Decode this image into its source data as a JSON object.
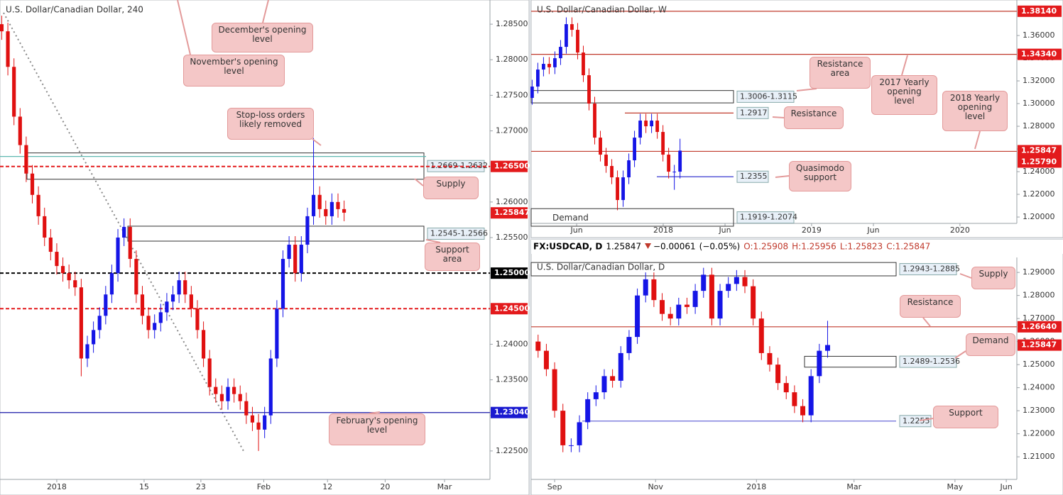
{
  "chart_data": [
    {
      "type": "candlestick",
      "title": "U.S. Dollar/Canadian Dollar, 240",
      "up_color": "#1515e6",
      "down_color": "#e01010",
      "xlim": [
        -6.5,
        49.6
      ],
      "ylim": [
        1.221,
        1.2884
      ],
      "xticks": [
        {
          "value": 0,
          "label": "2018"
        },
        {
          "value": 10,
          "label": "15"
        },
        {
          "value": 16.5,
          "label": "23"
        },
        {
          "value": 23.7,
          "label": "Feb"
        },
        {
          "value": 31,
          "label": "12"
        },
        {
          "value": 37.6,
          "label": "20"
        },
        {
          "value": 44.4,
          "label": "Mar"
        }
      ],
      "yticks": [
        {
          "value": 1.225,
          "label": "1.22500"
        },
        {
          "value": 1.23,
          "label": "1.23000"
        },
        {
          "value": 1.235,
          "label": "1.23500"
        },
        {
          "value": 1.24,
          "label": "1.24000"
        },
        {
          "value": 1.245,
          "label": "1.24500"
        },
        {
          "value": 1.25,
          "label": "1.25000"
        },
        {
          "value": 1.255,
          "label": "1.25500"
        },
        {
          "value": 1.26,
          "label": "1.26000"
        },
        {
          "value": 1.265,
          "label": "1.26500"
        },
        {
          "value": 1.27,
          "label": "1.27000"
        },
        {
          "value": 1.275,
          "label": "1.27500"
        },
        {
          "value": 1.28,
          "label": "1.28000"
        },
        {
          "value": 1.285,
          "label": "1.28500"
        }
      ],
      "x": [
        -6.3,
        -5.6,
        -4.9,
        -4.2,
        -3.5,
        -2.8,
        -2.1,
        -1.4,
        -0.7,
        0,
        0.7,
        1.4,
        2.1,
        2.8,
        3.5,
        4.2,
        4.9,
        5.6,
        6.3,
        7,
        7.7,
        8.4,
        9.1,
        9.8,
        10.5,
        11.2,
        11.9,
        12.6,
        13.3,
        14,
        14.7,
        15.4,
        16.1,
        16.8,
        17.5,
        18.2,
        18.9,
        19.6,
        20.3,
        21,
        21.7,
        22.4,
        23.1,
        23.8,
        24.5,
        25.2,
        25.9,
        26.6,
        27.3,
        28,
        28.7,
        29.4,
        30.1,
        30.8,
        31.5,
        32.2,
        32.9
      ],
      "open": [
        1.285,
        1.284,
        1.279,
        1.272,
        1.268,
        1.264,
        1.261,
        1.258,
        1.255,
        1.253,
        1.251,
        1.25,
        1.249,
        1.248,
        1.238,
        1.24,
        1.242,
        1.244,
        1.247,
        1.25,
        1.255,
        1.2565,
        1.252,
        1.247,
        1.244,
        1.242,
        1.243,
        1.2445,
        1.246,
        1.247,
        1.249,
        1.247,
        1.245,
        1.242,
        1.238,
        1.234,
        1.233,
        1.232,
        1.234,
        1.233,
        1.232,
        1.23,
        1.229,
        1.228,
        1.23,
        1.238,
        1.245,
        1.252,
        1.254,
        1.25,
        1.254,
        1.258,
        1.261,
        1.259,
        1.258,
        1.26,
        1.259
      ],
      "high": [
        1.2862,
        1.2852,
        1.2802,
        1.2732,
        1.2692,
        1.2652,
        1.2622,
        1.2592,
        1.2562,
        1.2542,
        1.2522,
        1.2512,
        1.2502,
        1.2492,
        1.2412,
        1.2432,
        1.2452,
        1.2482,
        1.2512,
        1.2562,
        1.2577,
        1.2577,
        1.2532,
        1.2482,
        1.2452,
        1.2442,
        1.2457,
        1.2472,
        1.2482,
        1.2502,
        1.2502,
        1.2482,
        1.2462,
        1.2432,
        1.2392,
        1.2352,
        1.2342,
        1.2352,
        1.2352,
        1.2342,
        1.2332,
        1.2312,
        1.2302,
        1.2312,
        1.2392,
        1.2462,
        1.2532,
        1.2552,
        1.2552,
        1.2552,
        1.2592,
        1.269,
        1.2622,
        1.2602,
        1.2612,
        1.2612,
        1.2602
      ],
      "low": [
        1.2828,
        1.2778,
        1.2708,
        1.2668,
        1.2628,
        1.2598,
        1.2568,
        1.2538,
        1.2518,
        1.2498,
        1.2488,
        1.2478,
        1.2468,
        1.2355,
        1.2368,
        1.2388,
        1.2408,
        1.2428,
        1.2458,
        1.2488,
        1.2538,
        1.2508,
        1.2458,
        1.2428,
        1.2408,
        1.2408,
        1.2418,
        1.2433,
        1.2448,
        1.2458,
        1.2458,
        1.2438,
        1.2408,
        1.2368,
        1.2328,
        1.2318,
        1.2308,
        1.2308,
        1.2318,
        1.2308,
        1.2288,
        1.2278,
        1.225,
        1.2268,
        1.2288,
        1.2368,
        1.2438,
        1.2508,
        1.2488,
        1.2488,
        1.2528,
        1.2568,
        1.2578,
        1.2568,
        1.2568,
        1.2578,
        1.2573
      ],
      "close": [
        1.284,
        1.279,
        1.272,
        1.268,
        1.264,
        1.261,
        1.258,
        1.255,
        1.253,
        1.251,
        1.25,
        1.249,
        1.248,
        1.238,
        1.24,
        1.242,
        1.244,
        1.247,
        1.25,
        1.255,
        1.2565,
        1.252,
        1.247,
        1.244,
        1.242,
        1.243,
        1.2445,
        1.246,
        1.247,
        1.249,
        1.247,
        1.245,
        1.242,
        1.238,
        1.234,
        1.233,
        1.232,
        1.234,
        1.233,
        1.232,
        1.23,
        1.229,
        1.228,
        1.23,
        1.238,
        1.245,
        1.252,
        1.254,
        1.25,
        1.254,
        1.258,
        1.261,
        1.259,
        1.258,
        1.26,
        1.259,
        1.2585
      ],
      "levels": [
        {
          "value": 1.2664,
          "color": "#5fb8b0"
        },
        {
          "value": 1.265,
          "color": "#e31a1c",
          "dashed": true
        },
        {
          "value": 1.25,
          "color": "#000000",
          "dashed": true
        },
        {
          "value": 1.245,
          "color": "#e31a1c",
          "dashed": true
        },
        {
          "value": 1.2304,
          "color": "#1a1aa8"
        }
      ],
      "zones": [
        {
          "label": "1.2669-1.2632",
          "high": 1.2669,
          "low": 1.2632
        },
        {
          "label": "1.2545-1.2566",
          "low": 1.2545,
          "high": 1.2566
        }
      ],
      "price_tags": [
        {
          "value": 1.265,
          "label": "1.26500",
          "color": "#e31a1c"
        },
        {
          "value": 1.25847,
          "label": "1.25847",
          "color": "#e31a1c"
        },
        {
          "value": 1.25,
          "label": "1.25000",
          "color": "#000000"
        },
        {
          "value": 1.245,
          "label": "1.24500",
          "color": "#e31a1c"
        },
        {
          "value": 1.2304,
          "label": "1.23040",
          "color": "#1a1ad0"
        }
      ],
      "callouts": [
        "December's opening level",
        "November's opening level",
        "Stop-loss orders likely removed",
        "Supply",
        "Support area",
        "February's opening level"
      ]
    },
    {
      "type": "candlestick",
      "title": "U.S. Dollar/Canadian Dollar, W",
      "up_color": "#1515e6",
      "down_color": "#e01010",
      "xlim": [
        1.32,
        40.6
      ],
      "ylim": [
        1.1944,
        1.3913
      ],
      "xticks": [
        {
          "value": 5,
          "label": "Jun"
        },
        {
          "value": 12,
          "label": "2018"
        },
        {
          "value": 17,
          "label": "Jun"
        },
        {
          "value": 24,
          "label": "2019"
        },
        {
          "value": 29,
          "label": "Jun"
        },
        {
          "value": 36,
          "label": "2020"
        }
      ],
      "yticks": [
        {
          "value": 1.2,
          "label": "1.20000"
        },
        {
          "value": 1.22,
          "label": "1.22000"
        },
        {
          "value": 1.24,
          "label": "1.24000"
        },
        {
          "value": 1.26,
          "label": "1.26000"
        },
        {
          "value": 1.28,
          "label": "1.28000"
        },
        {
          "value": 1.3,
          "label": "1.30000"
        },
        {
          "value": 1.32,
          "label": "1.32000"
        },
        {
          "value": 1.34,
          "label": "1.34000"
        },
        {
          "value": 1.36,
          "label": "1.36000"
        }
      ],
      "x": [
        1.4,
        1.86,
        2.32,
        2.78,
        3.24,
        3.7,
        4.16,
        4.62,
        5.08,
        5.54,
        6.0,
        6.46,
        6.92,
        7.38,
        7.84,
        8.3,
        8.76,
        9.22,
        9.68,
        10.14,
        10.6,
        11.06,
        11.52,
        11.98,
        12.44,
        12.9,
        13.36
      ],
      "open": [
        1.305,
        1.315,
        1.33,
        1.335,
        1.332,
        1.34,
        1.35,
        1.37,
        1.365,
        1.345,
        1.325,
        1.3,
        1.27,
        1.255,
        1.245,
        1.235,
        1.215,
        1.235,
        1.25,
        1.27,
        1.285,
        1.28,
        1.285,
        1.275,
        1.255,
        1.24,
        1.24
      ],
      "high": [
        1.321,
        1.336,
        1.341,
        1.341,
        1.346,
        1.356,
        1.376,
        1.376,
        1.371,
        1.351,
        1.331,
        1.306,
        1.276,
        1.261,
        1.251,
        1.241,
        1.241,
        1.256,
        1.276,
        1.291,
        1.291,
        1.291,
        1.291,
        1.281,
        1.261,
        1.246,
        1.269
      ],
      "low": [
        1.299,
        1.309,
        1.324,
        1.326,
        1.326,
        1.334,
        1.344,
        1.359,
        1.339,
        1.319,
        1.294,
        1.264,
        1.249,
        1.239,
        1.229,
        1.206,
        1.209,
        1.229,
        1.244,
        1.264,
        1.274,
        1.274,
        1.269,
        1.249,
        1.234,
        1.224,
        1.234
      ],
      "close": [
        1.315,
        1.33,
        1.335,
        1.332,
        1.34,
        1.35,
        1.37,
        1.365,
        1.345,
        1.325,
        1.3,
        1.27,
        1.255,
        1.245,
        1.235,
        1.215,
        1.235,
        1.25,
        1.27,
        1.285,
        1.28,
        1.285,
        1.275,
        1.255,
        1.24,
        1.24,
        1.2585
      ],
      "levels": [
        {
          "value": 1.3814,
          "color": "#c0392b"
        },
        {
          "value": 1.3434,
          "color": "#c0392b"
        },
        {
          "value": 1.2917,
          "color": "#c0392b",
          "boxed": true
        },
        {
          "value": 1.2579,
          "color": "#c0392b"
        },
        {
          "value": 1.2355,
          "color": "#3a3ad0",
          "boxed": true
        }
      ],
      "zones": [
        {
          "label": "1.3006-1.3115",
          "low": 1.3006,
          "high": 1.3115
        },
        {
          "label": "1.1919-1.2074",
          "low": 1.1919,
          "high": 1.2074
        }
      ],
      "price_tags": [
        {
          "value": 1.3814,
          "label": "1.38140",
          "color": "#e31a1c"
        },
        {
          "value": 1.3434,
          "label": "1.34340",
          "color": "#e31a1c"
        },
        {
          "value": 1.25847,
          "label": "1.25847",
          "color": "#e31a1c"
        },
        {
          "value": 1.2579,
          "label": "1.25790",
          "color": "#e31a1c"
        }
      ],
      "callouts": [
        "Resistance area",
        "Resistance",
        "Quasimodo support",
        "2017 Yearly opening level",
        "2018 Yearly opening level",
        "Demand"
      ]
    },
    {
      "type": "candlestick",
      "title": "U.S. Dollar/Canadian Dollar, D",
      "up_color": "#1515e6",
      "down_color": "#e01010",
      "header": {
        "symbol": "FX:USDCAD, D",
        "last": 1.25847,
        "change": {
          "value": -0.00061,
          "label": "−0.00061"
        },
        "change_pct": {
          "value": -0.05,
          "label": "(−0.05%)"
        },
        "open": {
          "value": 1.25908,
          "label": "O:1.25908"
        },
        "high": {
          "value": 1.25956,
          "label": "H:1.25956"
        },
        "low": {
          "value": 1.25823,
          "label": "L:1.25823"
        },
        "close": {
          "value": 1.25847,
          "label": "C:1.25847"
        }
      },
      "xlim": [
        -14.2,
        279.4
      ],
      "ylim": [
        1.2002,
        1.2965
      ],
      "xticks": [
        {
          "value": 0,
          "label": "Sep"
        },
        {
          "value": 61,
          "label": "Nov"
        },
        {
          "value": 122,
          "label": "2018"
        },
        {
          "value": 181,
          "label": "Mar"
        },
        {
          "value": 242,
          "label": "May"
        },
        {
          "value": 273,
          "label": "Jun"
        }
      ],
      "yticks": [
        {
          "value": 1.21,
          "label": "1.21000"
        },
        {
          "value": 1.22,
          "label": "1.22000"
        },
        {
          "value": 1.23,
          "label": "1.23000"
        },
        {
          "value": 1.24,
          "label": "1.24000"
        },
        {
          "value": 1.25,
          "label": "1.25000"
        },
        {
          "value": 1.26,
          "label": "1.26000"
        },
        {
          "value": 1.27,
          "label": "1.27000"
        },
        {
          "value": 1.28,
          "label": "1.28000"
        },
        {
          "value": 1.29,
          "label": "1.29000"
        }
      ],
      "x": [
        -10,
        -5,
        0,
        5,
        10,
        15,
        20,
        25,
        30,
        35,
        40,
        45,
        50,
        55,
        60,
        65,
        70,
        75,
        80,
        85,
        90,
        95,
        100,
        105,
        110,
        115,
        120,
        125,
        130,
        135,
        140,
        145,
        150,
        155,
        160,
        165
      ],
      "open": [
        1.26,
        1.256,
        1.248,
        1.23,
        1.215,
        1.215,
        1.225,
        1.235,
        1.238,
        1.245,
        1.243,
        1.255,
        1.262,
        1.28,
        1.287,
        1.278,
        1.272,
        1.27,
        1.276,
        1.275,
        1.282,
        1.289,
        1.27,
        1.282,
        1.285,
        1.288,
        1.284,
        1.27,
        1.255,
        1.25,
        1.242,
        1.238,
        1.232,
        1.228,
        1.245,
        1.256
      ],
      "high": [
        1.263,
        1.259,
        1.251,
        1.233,
        1.218,
        1.228,
        1.238,
        1.241,
        1.248,
        1.248,
        1.258,
        1.265,
        1.283,
        1.29,
        1.29,
        1.281,
        1.275,
        1.279,
        1.279,
        1.285,
        1.292,
        1.292,
        1.285,
        1.288,
        1.291,
        1.291,
        1.287,
        1.273,
        1.258,
        1.253,
        1.245,
        1.241,
        1.235,
        1.248,
        1.259,
        1.269
      ],
      "low": [
        1.253,
        1.245,
        1.227,
        1.212,
        1.212,
        1.212,
        1.222,
        1.232,
        1.235,
        1.24,
        1.24,
        1.252,
        1.259,
        1.277,
        1.275,
        1.269,
        1.267,
        1.267,
        1.272,
        1.272,
        1.279,
        1.267,
        1.267,
        1.279,
        1.282,
        1.281,
        1.267,
        1.252,
        1.247,
        1.239,
        1.235,
        1.229,
        1.225,
        1.225,
        1.242,
        1.253
      ],
      "close": [
        1.256,
        1.248,
        1.23,
        1.215,
        1.215,
        1.225,
        1.235,
        1.238,
        1.245,
        1.243,
        1.255,
        1.262,
        1.28,
        1.287,
        1.278,
        1.272,
        1.27,
        1.276,
        1.275,
        1.282,
        1.289,
        1.27,
        1.282,
        1.285,
        1.288,
        1.284,
        1.27,
        1.255,
        1.25,
        1.242,
        1.238,
        1.232,
        1.228,
        1.245,
        1.256,
        1.2585
      ],
      "levels": [
        {
          "value": 1.2664,
          "color": "#c0392b"
        },
        {
          "value": 1.2255,
          "color": "#6a6ad8",
          "boxed": true
        }
      ],
      "zones": [
        {
          "label": "1.2943-1.2885",
          "high": 1.2943,
          "low": 1.2885
        },
        {
          "label": "1.2489-1.2536",
          "low": 1.2489,
          "high": 1.2536
        }
      ],
      "price_tags": [
        {
          "value": 1.2664,
          "label": "1.26640",
          "color": "#e31a1c"
        },
        {
          "value": 1.25847,
          "label": "1.25847",
          "color": "#e31a1c"
        }
      ],
      "callouts": [
        "Supply",
        "Resistance",
        "Demand",
        "Support"
      ]
    }
  ]
}
